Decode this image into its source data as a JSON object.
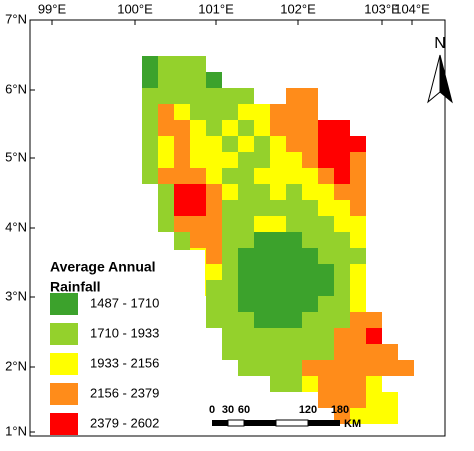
{
  "map": {
    "top_labels": [
      "99°E",
      "100°E",
      "101°E",
      "102°E",
      "103°E",
      "104°E"
    ],
    "left_labels": [
      "7°N",
      "6°N",
      "5°N",
      "4°N",
      "3°N",
      "2°N",
      "1°N"
    ],
    "legend": {
      "title_lines": [
        "Average Annual",
        "Rainfall"
      ],
      "items": [
        {
          "label": "1487 - 1710",
          "color": "#3ca22c"
        },
        {
          "label": "1710 - 1933",
          "color": "#94d12c"
        },
        {
          "label": "1933 - 2156",
          "color": "#ffff00"
        },
        {
          "label": "2156 - 2379",
          "color": "#ff8c1a"
        },
        {
          "label": "2379 - 2602",
          "color": "#ff0000"
        }
      ]
    },
    "scale_labels": [
      "0",
      "30",
      "60",
      "120",
      "180"
    ],
    "scale_unit": "KM",
    "north": "N"
  }
}
